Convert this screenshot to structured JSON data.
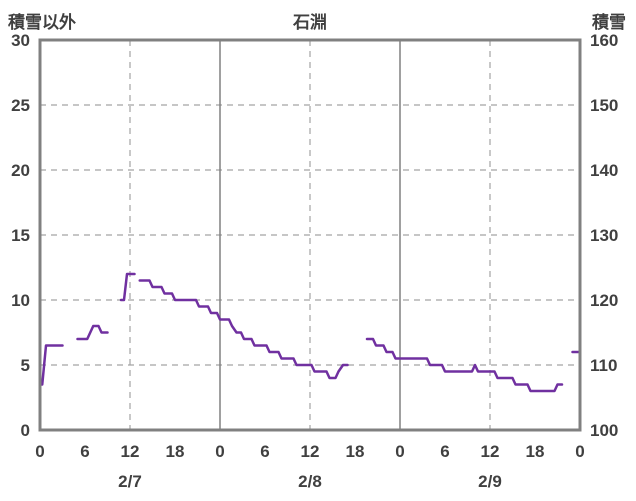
{
  "chart_data": {
    "type": "line",
    "title": "石淵",
    "left_axis": {
      "label": "積雪以外",
      "min": 0,
      "max": 30,
      "ticks": [
        0,
        5,
        10,
        15,
        20,
        25,
        30
      ]
    },
    "right_axis": {
      "label": "積雪",
      "min": 100,
      "max": 160,
      "ticks": [
        100,
        110,
        120,
        130,
        140,
        150,
        160
      ]
    },
    "x_axis": {
      "min": 0,
      "max": 72,
      "hour_ticks": [
        {
          "hour": 0,
          "label": "0"
        },
        {
          "hour": 6,
          "label": "6"
        },
        {
          "hour": 12,
          "label": "12"
        },
        {
          "hour": 18,
          "label": "18"
        },
        {
          "hour": 24,
          "label": "0"
        },
        {
          "hour": 30,
          "label": "6"
        },
        {
          "hour": 36,
          "label": "12"
        },
        {
          "hour": 42,
          "label": "18"
        },
        {
          "hour": 48,
          "label": "0"
        },
        {
          "hour": 54,
          "label": "6"
        },
        {
          "hour": 60,
          "label": "12"
        },
        {
          "hour": 66,
          "label": "18"
        },
        {
          "hour": 72,
          "label": "0"
        }
      ],
      "date_labels": [
        {
          "hour": 12,
          "label": "2/7"
        },
        {
          "hour": 36,
          "label": "2/8"
        },
        {
          "hour": 60,
          "label": "2/9"
        }
      ],
      "dashed_gridlines_at": [
        12,
        36,
        60
      ],
      "solid_gridlines_at": [
        24,
        48
      ]
    },
    "series": [
      {
        "name": "積雪以外",
        "axis": "left",
        "color": "#7030a0",
        "segments": [
          [
            [
              0,
              3.5
            ],
            [
              0.3,
              3.5
            ],
            [
              0.8,
              6.5
            ],
            [
              3,
              6.5
            ]
          ],
          [
            [
              5,
              7
            ],
            [
              6.3,
              7
            ],
            [
              6.7,
              7.5
            ],
            [
              7.1,
              8
            ],
            [
              7.8,
              8
            ],
            [
              8.2,
              7.5
            ],
            [
              9,
              7.5
            ]
          ],
          [
            [
              10.8,
              10
            ],
            [
              11.2,
              10
            ],
            [
              11.6,
              12
            ],
            [
              12.6,
              12
            ]
          ],
          [
            [
              13.3,
              11.5
            ],
            [
              14.6,
              11.5
            ],
            [
              15,
              11
            ],
            [
              16.2,
              11
            ],
            [
              16.6,
              10.5
            ],
            [
              17.6,
              10.5
            ],
            [
              18,
              10
            ],
            [
              20.8,
              10
            ],
            [
              21.2,
              9.5
            ],
            [
              22.4,
              9.5
            ],
            [
              22.8,
              9
            ],
            [
              23.6,
              9
            ],
            [
              24,
              8.5
            ],
            [
              25.2,
              8.5
            ],
            [
              25.6,
              8
            ],
            [
              26.2,
              7.5
            ],
            [
              26.8,
              7.5
            ],
            [
              27.2,
              7
            ],
            [
              28.2,
              7
            ],
            [
              28.6,
              6.5
            ],
            [
              30.2,
              6.5
            ],
            [
              30.6,
              6
            ],
            [
              31.8,
              6
            ],
            [
              32.2,
              5.5
            ],
            [
              33.8,
              5.5
            ],
            [
              34.2,
              5
            ],
            [
              36.2,
              5
            ],
            [
              36.6,
              4.5
            ],
            [
              38.2,
              4.5
            ],
            [
              38.6,
              4
            ],
            [
              39.4,
              4
            ],
            [
              39.8,
              4.5
            ],
            [
              40.4,
              5
            ],
            [
              41,
              5
            ]
          ],
          [
            [
              43.6,
              7
            ],
            [
              44.4,
              7
            ],
            [
              44.8,
              6.5
            ],
            [
              45.8,
              6.5
            ],
            [
              46.2,
              6
            ],
            [
              47,
              6
            ],
            [
              47.4,
              5.5
            ],
            [
              51.6,
              5.5
            ],
            [
              52,
              5
            ],
            [
              53.6,
              5
            ],
            [
              54,
              4.5
            ],
            [
              57.6,
              4.5
            ],
            [
              58,
              5
            ],
            [
              58.4,
              4.5
            ],
            [
              60.6,
              4.5
            ],
            [
              61,
              4
            ],
            [
              63,
              4
            ],
            [
              63.4,
              3.5
            ],
            [
              65,
              3.5
            ],
            [
              65.4,
              3
            ],
            [
              68.6,
              3
            ],
            [
              69,
              3.5
            ],
            [
              69.6,
              3.5
            ]
          ],
          [
            [
              71,
              6
            ],
            [
              72,
              6
            ]
          ]
        ]
      }
    ]
  },
  "colors": {
    "line": "#7030a0",
    "frame": "#808080",
    "grid": "#a3a3a3",
    "text": "#404040",
    "background": "#ffffff"
  }
}
